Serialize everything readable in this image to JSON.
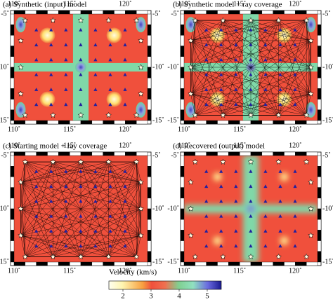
{
  "panels": [
    {
      "title": "(a) Synthetic (input) model"
    },
    {
      "title": "(b) Synthetic model + ray coverage"
    },
    {
      "title": "(c) Starting model + ray coverage"
    },
    {
      "title": "(d) Recovered (output) model"
    }
  ],
  "axes": {
    "x_labels": [
      "110˚",
      "115˚",
      "120˚"
    ],
    "y_labels": [
      "-5˚",
      "-10˚",
      "-15˚"
    ]
  },
  "colorbar": {
    "label": "Velocity (km/s)",
    "ticks": [
      "2",
      "3",
      "4",
      "5"
    ]
  }
}
